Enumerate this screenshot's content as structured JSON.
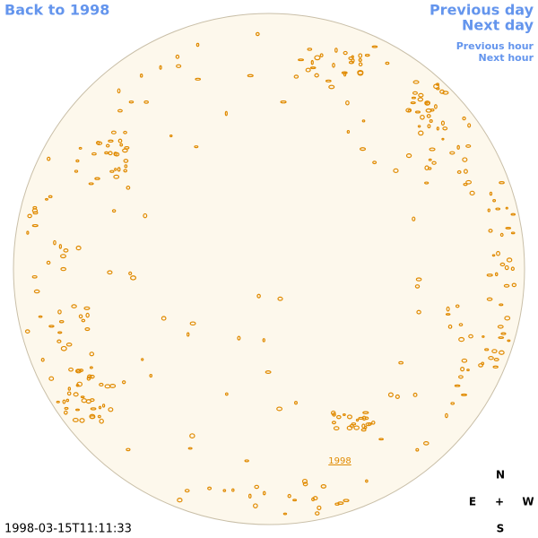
{
  "nav": {
    "back_year": "Back to 1998",
    "previous_day": "Previous day",
    "next_day": "Next day",
    "previous_hour": "Previous hour",
    "next_hour": "Next hour"
  },
  "disk_label": "1998",
  "timestamp": "1998-03-15T11:11:33",
  "compass": {
    "north": "N",
    "east": "E",
    "center": "+",
    "west": "W",
    "south": "S"
  }
}
